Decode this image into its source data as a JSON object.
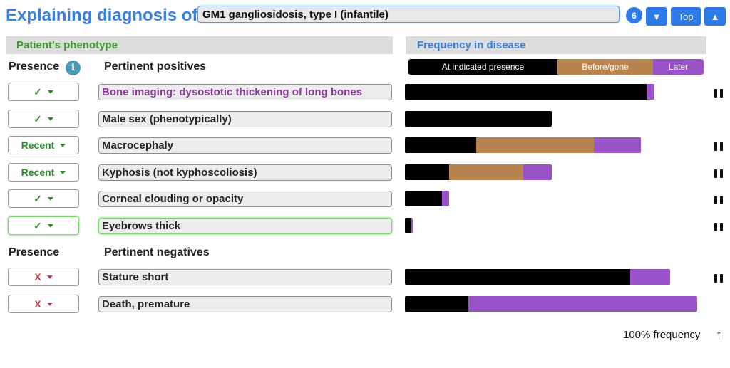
{
  "header": {
    "title": "Explaining diagnosis of",
    "diagnosis": "GM1 gangliosidosis, type I (infantile)",
    "count": "6",
    "btn_down": "▼",
    "btn_top": "Top",
    "btn_up": "▲"
  },
  "sections": {
    "phenotype": "Patient's phenotype",
    "frequency": "Frequency in disease"
  },
  "columns": {
    "presence": "Presence",
    "positives": "Pertinent positives",
    "presence_neg": "Presence",
    "negatives": "Pertinent negatives"
  },
  "info_icon": "i",
  "legend": {
    "at": "At indicated presence",
    "before": "Before/gone",
    "later": "Later"
  },
  "colors": {
    "accent": "#3a7ee0",
    "green": "#3a9a2a",
    "at": "#000000",
    "before": "#b9834f",
    "later": "#9a52c9",
    "neg": "#d8354a"
  },
  "rows": [
    {
      "presence": "✓",
      "label": "Bone imaging: dysostotic thickening of long bones",
      "freq": {
        "at": 0.827,
        "before": 0.0,
        "later": 0.027
      },
      "pause": true
    },
    {
      "presence": "✓",
      "label": "Male sex (phenotypically)",
      "freq": {
        "at": 0.502,
        "before": 0.0,
        "later": 0.0
      },
      "pause": false
    },
    {
      "presence": "Recent",
      "label": "Macrocephaly",
      "freq": {
        "at": 0.243,
        "before": 0.402,
        "later": 0.162
      },
      "pause": true
    },
    {
      "presence": "Recent",
      "label": "Kyphosis (not kyphoscoliosis)",
      "freq": {
        "at": 0.152,
        "before": 0.253,
        "later": 0.098
      },
      "pause": true
    },
    {
      "presence": "✓",
      "label": "Corneal clouding or opacity",
      "freq": {
        "at": 0.128,
        "before": 0.0,
        "later": 0.025
      },
      "pause": true
    },
    {
      "presence": "✓",
      "label": "Eyebrows thick",
      "freq": {
        "at": 0.022,
        "before": 0.0,
        "later": 0.005
      },
      "pause": true
    }
  ],
  "neg_rows": [
    {
      "presence": "X",
      "label": "Stature short",
      "freq": {
        "at": 0.77,
        "before": 0.0,
        "later": 0.137
      },
      "pause": true
    },
    {
      "presence": "X",
      "label": "Death, premature",
      "freq": {
        "at": 0.218,
        "before": 0.0,
        "later": 0.782
      },
      "pause": false
    }
  ],
  "footer": {
    "note": "100% frequency",
    "arrow": "🠕"
  }
}
